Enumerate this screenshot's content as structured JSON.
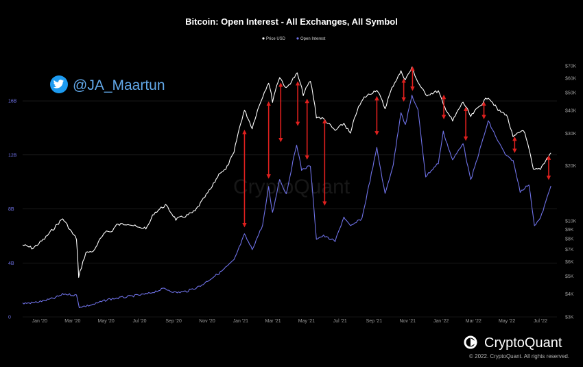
{
  "header": {
    "title": "Bitcoin: Open Interest - All Exchanges, All Symbol"
  },
  "overlay": {
    "twitter_handle": "@JA_Maartun",
    "twitter_icon": "twitter-bird-icon",
    "watermark": "CryptoQuant"
  },
  "footer": {
    "brand": "CryptoQuant",
    "brand_icon": "cryptoquant-logo-icon",
    "copyright": "© 2022. CryptoQuant. All rights reserved."
  },
  "colors": {
    "background": "#000000",
    "price_line": "#ffffff",
    "oi_line": "#6f72e8",
    "arrow": "#e0201e",
    "twitter": "#1d9bf0"
  },
  "chart_data": {
    "type": "line",
    "title": "Bitcoin: Open Interest - All Exchanges, All Symbol",
    "legend": {
      "placement": "top-center",
      "entries": [
        {
          "label": "Price USD",
          "color": "#ffffff"
        },
        {
          "label": "Open Interest",
          "color": "#6f72e8"
        }
      ]
    },
    "x_axis": {
      "type": "date",
      "range": [
        "2019-12-01",
        "2022-07-31"
      ],
      "ticks": [
        {
          "label": "Jan '20",
          "date": "2020-01-01"
        },
        {
          "label": "Mar '20",
          "date": "2020-03-01"
        },
        {
          "label": "May '20",
          "date": "2020-05-01"
        },
        {
          "label": "Jul '20",
          "date": "2020-07-01"
        },
        {
          "label": "Sep '20",
          "date": "2020-09-01"
        },
        {
          "label": "Nov '20",
          "date": "2020-11-01"
        },
        {
          "label": "Jan '21",
          "date": "2021-01-01"
        },
        {
          "label": "Mar '21",
          "date": "2021-03-01"
        },
        {
          "label": "May '21",
          "date": "2021-05-01"
        },
        {
          "label": "Jul '21",
          "date": "2021-07-01"
        },
        {
          "label": "Sep '21",
          "date": "2021-09-01"
        },
        {
          "label": "Nov '21",
          "date": "2021-11-01"
        },
        {
          "label": "Jan '22",
          "date": "2022-01-01"
        },
        {
          "label": "Mar '22",
          "date": "2022-03-01"
        },
        {
          "label": "May '22",
          "date": "2022-05-01"
        },
        {
          "label": "Jul '22",
          "date": "2022-07-01"
        }
      ]
    },
    "y_left": {
      "series": "Open Interest",
      "unit": "USD (billions)",
      "range": [
        0,
        19
      ],
      "ticks": [
        {
          "label": "0",
          "value": 0
        },
        {
          "label": "4B",
          "value": 4
        },
        {
          "label": "8B",
          "value": 8
        },
        {
          "label": "12B",
          "value": 12
        },
        {
          "label": "16B",
          "value": 16
        }
      ],
      "grid": true
    },
    "y_right": {
      "series": "Price USD",
      "scale": "log",
      "range": [
        3000,
        75000
      ],
      "ticks": [
        {
          "label": "$3K",
          "value": 3000
        },
        {
          "label": "$4K",
          "value": 4000
        },
        {
          "label": "$5K",
          "value": 5000
        },
        {
          "label": "$6K",
          "value": 6000
        },
        {
          "label": "$7K",
          "value": 7000
        },
        {
          "label": "$8K",
          "value": 8000
        },
        {
          "label": "$9K",
          "value": 9000
        },
        {
          "label": "$10K",
          "value": 10000
        },
        {
          "label": "$20K",
          "value": 20000
        },
        {
          "label": "$30K",
          "value": 30000
        },
        {
          "label": "$40K",
          "value": 40000
        },
        {
          "label": "$50K",
          "value": 50000
        },
        {
          "label": "$60K",
          "value": 60000
        },
        {
          "label": "$70K",
          "value": 70000
        }
      ]
    },
    "series": [
      {
        "name": "Price USD",
        "axis": "right",
        "color": "#ffffff",
        "points": [
          [
            "2019-12-01",
            7400
          ],
          [
            "2019-12-20",
            7100
          ],
          [
            "2020-01-10",
            8000
          ],
          [
            "2020-01-28",
            9200
          ],
          [
            "2020-02-12",
            10300
          ],
          [
            "2020-02-28",
            8700
          ],
          [
            "2020-03-08",
            8000
          ],
          [
            "2020-03-12",
            4900
          ],
          [
            "2020-03-25",
            6700
          ],
          [
            "2020-04-10",
            6900
          ],
          [
            "2020-04-29",
            8800
          ],
          [
            "2020-05-10",
            8700
          ],
          [
            "2020-05-20",
            9500
          ],
          [
            "2020-06-10",
            9700
          ],
          [
            "2020-06-30",
            9150
          ],
          [
            "2020-07-15",
            9200
          ],
          [
            "2020-07-27",
            11000
          ],
          [
            "2020-08-17",
            12200
          ],
          [
            "2020-09-05",
            10200
          ],
          [
            "2020-09-25",
            10700
          ],
          [
            "2020-10-10",
            11300
          ],
          [
            "2020-10-25",
            13100
          ],
          [
            "2020-11-10",
            15300
          ],
          [
            "2020-11-25",
            18500
          ],
          [
            "2020-12-05",
            19000
          ],
          [
            "2020-12-20",
            23500
          ],
          [
            "2021-01-08",
            40000
          ],
          [
            "2021-01-22",
            32000
          ],
          [
            "2021-02-08",
            46000
          ],
          [
            "2021-02-21",
            57000
          ],
          [
            "2021-02-28",
            45000
          ],
          [
            "2021-03-13",
            61000
          ],
          [
            "2021-03-25",
            52500
          ],
          [
            "2021-04-14",
            63500
          ],
          [
            "2021-04-25",
            49000
          ],
          [
            "2021-05-08",
            58000
          ],
          [
            "2021-05-19",
            37000
          ],
          [
            "2021-06-01",
            36000
          ],
          [
            "2021-06-22",
            31000
          ],
          [
            "2021-07-08",
            34000
          ],
          [
            "2021-07-20",
            29800
          ],
          [
            "2021-08-01",
            40000
          ],
          [
            "2021-08-14",
            47000
          ],
          [
            "2021-09-06",
            52000
          ],
          [
            "2021-09-21",
            41000
          ],
          [
            "2021-10-06",
            55000
          ],
          [
            "2021-10-20",
            65000
          ],
          [
            "2021-10-28",
            59000
          ],
          [
            "2021-11-09",
            68000
          ],
          [
            "2021-11-20",
            57000
          ],
          [
            "2021-12-04",
            48500
          ],
          [
            "2021-12-27",
            51000
          ],
          [
            "2022-01-05",
            43000
          ],
          [
            "2022-01-22",
            35000
          ],
          [
            "2022-02-10",
            44500
          ],
          [
            "2022-02-24",
            37000
          ],
          [
            "2022-03-28",
            47500
          ],
          [
            "2022-04-15",
            40000
          ],
          [
            "2022-04-30",
            38000
          ],
          [
            "2022-05-12",
            28500
          ],
          [
            "2022-05-31",
            31500
          ],
          [
            "2022-06-18",
            18900
          ],
          [
            "2022-07-01",
            19300
          ],
          [
            "2022-07-20",
            23500
          ]
        ]
      },
      {
        "name": "Open Interest",
        "axis": "left",
        "color": "#6f72e8",
        "points": [
          [
            "2019-12-01",
            1.0
          ],
          [
            "2019-12-20",
            1.05
          ],
          [
            "2020-01-10",
            1.2
          ],
          [
            "2020-01-28",
            1.4
          ],
          [
            "2020-02-14",
            1.7
          ],
          [
            "2020-03-08",
            1.6
          ],
          [
            "2020-03-13",
            0.75
          ],
          [
            "2020-03-25",
            0.8
          ],
          [
            "2020-04-10",
            0.95
          ],
          [
            "2020-05-05",
            1.3
          ],
          [
            "2020-06-10",
            1.5
          ],
          [
            "2020-07-15",
            1.7
          ],
          [
            "2020-08-15",
            2.1
          ],
          [
            "2020-09-05",
            1.8
          ],
          [
            "2020-09-25",
            1.9
          ],
          [
            "2020-10-20",
            2.3
          ],
          [
            "2020-11-10",
            2.9
          ],
          [
            "2020-11-25",
            3.3
          ],
          [
            "2020-12-20",
            4.2
          ],
          [
            "2021-01-08",
            6.1
          ],
          [
            "2021-01-22",
            5.0
          ],
          [
            "2021-02-10",
            6.8
          ],
          [
            "2021-02-21",
            9.6
          ],
          [
            "2021-02-28",
            7.7
          ],
          [
            "2021-03-13",
            10.2
          ],
          [
            "2021-03-25",
            9.1
          ],
          [
            "2021-04-13",
            12.8
          ],
          [
            "2021-04-22",
            10.9
          ],
          [
            "2021-05-08",
            11.2
          ],
          [
            "2021-05-19",
            5.8
          ],
          [
            "2021-06-01",
            6.0
          ],
          [
            "2021-06-22",
            5.6
          ],
          [
            "2021-07-08",
            7.4
          ],
          [
            "2021-07-20",
            6.7
          ],
          [
            "2021-08-10",
            7.3
          ],
          [
            "2021-09-06",
            12.5
          ],
          [
            "2021-09-21",
            9.1
          ],
          [
            "2021-10-06",
            11.3
          ],
          [
            "2021-10-20",
            15.2
          ],
          [
            "2021-10-28",
            14.2
          ],
          [
            "2021-11-09",
            16.4
          ],
          [
            "2021-11-20",
            15.3
          ],
          [
            "2021-12-04",
            10.4
          ],
          [
            "2021-12-27",
            11.4
          ],
          [
            "2022-01-05",
            13.7
          ],
          [
            "2022-01-22",
            11.6
          ],
          [
            "2022-02-10",
            12.9
          ],
          [
            "2022-02-24",
            10.1
          ],
          [
            "2022-03-28",
            14.5
          ],
          [
            "2022-04-15",
            13.0
          ],
          [
            "2022-04-30",
            11.9
          ],
          [
            "2022-05-12",
            11.6
          ],
          [
            "2022-05-25",
            9.3
          ],
          [
            "2022-06-10",
            9.8
          ],
          [
            "2022-06-20",
            6.8
          ],
          [
            "2022-07-01",
            7.3
          ],
          [
            "2022-07-20",
            9.7
          ]
        ]
      }
    ],
    "annotations": {
      "type": "double-headed-arrow",
      "color": "#e0201e",
      "description_of_use": "vertical gaps between price and open interest",
      "items": [
        {
          "date": "2021-01-08",
          "from_oi": 6.8,
          "to_oi": 13.7
        },
        {
          "date": "2021-02-21",
          "from_oi": 10.4,
          "to_oi": 15.8
        },
        {
          "date": "2021-03-15",
          "from_oi": 13.1,
          "to_oi": 17.2
        },
        {
          "date": "2021-04-15",
          "from_oi": 14.3,
          "to_oi": 17.3
        },
        {
          "date": "2021-05-02",
          "from_oi": 11.8,
          "to_oi": 16.0
        },
        {
          "date": "2021-06-03",
          "from_oi": 8.4,
          "to_oi": 14.5
        },
        {
          "date": "2021-09-06",
          "from_oi": 13.6,
          "to_oi": 16.2
        },
        {
          "date": "2021-10-25",
          "from_oi": 16.1,
          "to_oi": 17.5
        },
        {
          "date": "2021-11-10",
          "from_oi": 16.9,
          "to_oi": 18.4
        },
        {
          "date": "2022-01-06",
          "from_oi": 14.8,
          "to_oi": 16.3
        },
        {
          "date": "2022-02-15",
          "from_oi": 13.2,
          "to_oi": 15.4
        },
        {
          "date": "2022-03-20",
          "from_oi": 14.8,
          "to_oi": 15.8
        },
        {
          "date": "2022-05-15",
          "from_oi": 12.3,
          "to_oi": 13.2
        },
        {
          "date": "2022-07-16",
          "from_oi": 10.3,
          "to_oi": 11.8
        }
      ]
    }
  }
}
